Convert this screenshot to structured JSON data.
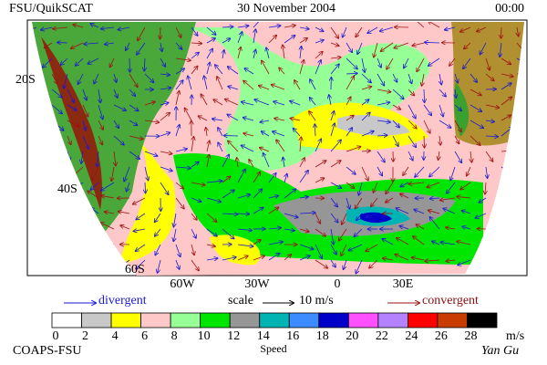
{
  "header": {
    "source": "FSU/QuikSCAT",
    "date": "30 November 2004",
    "time": "00:00"
  },
  "map": {
    "lat_labels": [
      "20S",
      "40S",
      "60S"
    ],
    "lon_labels": [
      "60W",
      "30W",
      "0",
      "30E"
    ]
  },
  "legend": {
    "divergent": "divergent",
    "scale": "scale",
    "scale_value": "10 m/s",
    "convergent": "convergent"
  },
  "colorbar": {
    "colors": [
      "#ffffff",
      "#c8c8c8",
      "#ffff00",
      "#ffc8c8",
      "#96ff96",
      "#00e600",
      "#969696",
      "#00b4b4",
      "#3c8cff",
      "#0000c8",
      "#ff50ff",
      "#b482ff",
      "#ff0000",
      "#c83c00",
      "#000000"
    ],
    "ticks": [
      0,
      2,
      4,
      6,
      8,
      10,
      12,
      14,
      16,
      18,
      20,
      22,
      24,
      26,
      28
    ],
    "unit": "m/s",
    "label": "Speed"
  },
  "footer": {
    "credit": "COAPS-FSU",
    "author": "Yan Gu"
  }
}
